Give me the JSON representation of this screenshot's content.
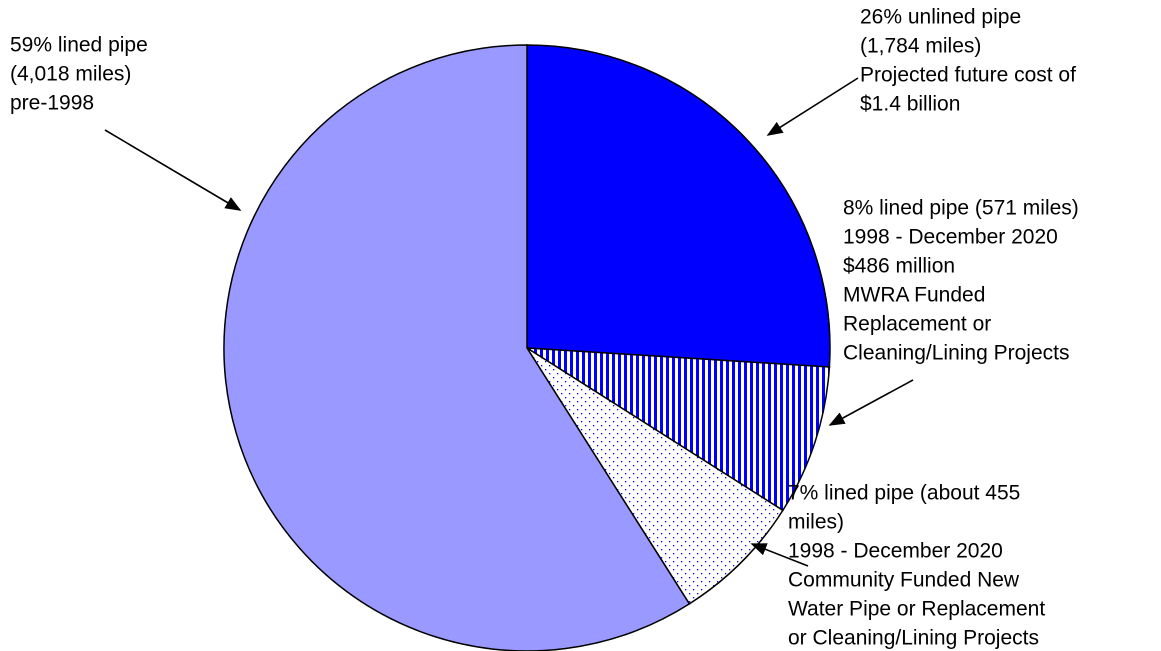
{
  "chart_data": {
    "type": "pie",
    "categories": [
      "unlined pipe",
      "lined pipe MWRA funded",
      "lined pipe community funded",
      "lined pipe pre-1998"
    ],
    "values": [
      26,
      8,
      7,
      59
    ],
    "colors": [
      "#0000ff",
      "#0000ff",
      "#0000ff",
      "#9999ff"
    ],
    "patterns": [
      "solid",
      "stripes",
      "dots",
      "solid"
    ],
    "labels": [
      [
        "26% unlined pipe",
        "(1,784 miles)",
        "Projected future cost of",
        "$1.4 billion"
      ],
      [
        "8% lined pipe (571 miles)",
        "1998 - December 2020",
        "$486 million",
        "MWRA Funded",
        "Replacement or",
        "Cleaning/Lining Projects"
      ],
      [
        "7% lined pipe (about 455",
        "miles)",
        "1998 - December 2020",
        "Community Funded New",
        "Water Pipe or Replacement",
        "or Cleaning/Lining Projects"
      ],
      [
        "59% lined pipe",
        "(4,018 miles)",
        "pre-1998"
      ]
    ]
  }
}
